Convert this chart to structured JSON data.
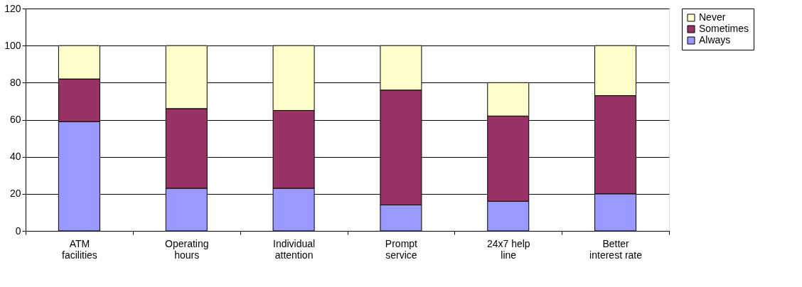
{
  "chart_data": {
    "type": "bar",
    "stacked": true,
    "categories": [
      "ATM facilities",
      "Operating hours",
      "Individual attention",
      "Prompt service",
      "24x7 help line",
      "Better interest rate"
    ],
    "series": [
      {
        "name": "Always",
        "color": "#9999ff",
        "values": [
          59,
          23,
          23,
          14,
          16,
          20
        ]
      },
      {
        "name": "Sometimes",
        "color": "#993366",
        "values": [
          23,
          43,
          42,
          62,
          46,
          53
        ]
      },
      {
        "name": "Never",
        "color": "#ffffcc",
        "values": [
          18,
          34,
          35,
          24,
          18,
          27
        ]
      }
    ],
    "ylim": [
      0,
      120
    ],
    "yticks": [
      0,
      20,
      40,
      60,
      80,
      100,
      120
    ],
    "grid": "y",
    "legend": "right"
  }
}
